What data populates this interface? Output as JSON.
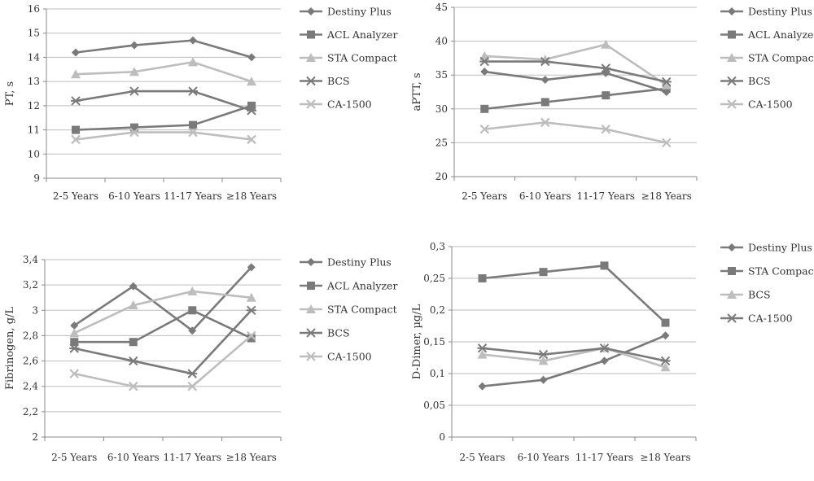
{
  "colors": {
    "dark": "#7a7a7a",
    "medium": "#8e8e8e",
    "light": "#bdbdbd",
    "grid": "#bdbdbd",
    "axis": "#8a8a8a"
  },
  "chart_data": [
    {
      "type": "line",
      "ylabel": "PT, s",
      "categories": [
        "2-5 Years",
        "6-10 Years",
        "11-17 Years",
        "≥18 Years"
      ],
      "yticks": [
        "9",
        "10",
        "11",
        "12",
        "13",
        "14",
        "15",
        "16"
      ],
      "ylim": [
        9,
        16
      ],
      "grid": true,
      "legend": "right",
      "series": [
        {
          "name": "Destiny Plus",
          "marker": "diamond",
          "tone": "dark",
          "values": [
            14.2,
            14.5,
            14.7,
            14.0
          ]
        },
        {
          "name": "ACL Analyzer",
          "marker": "square",
          "tone": "dark",
          "values": [
            11.0,
            11.1,
            11.2,
            12.0
          ]
        },
        {
          "name": "STA Compact",
          "marker": "triangle",
          "tone": "light",
          "values": [
            13.3,
            13.4,
            13.8,
            13.0
          ]
        },
        {
          "name": "BCS",
          "marker": "star",
          "tone": "dark",
          "values": [
            12.2,
            12.6,
            12.6,
            11.8
          ]
        },
        {
          "name": "CA-1500",
          "marker": "x",
          "tone": "light",
          "values": [
            10.6,
            10.9,
            10.9,
            10.6
          ]
        }
      ]
    },
    {
      "type": "line",
      "ylabel": "aPTT, s",
      "categories": [
        "2-5 Years",
        "6-10 Years",
        "11-17 Years",
        "≥18 Years"
      ],
      "yticks": [
        "20",
        "25",
        "30",
        "35",
        "40",
        "45"
      ],
      "ylim": [
        20,
        45
      ],
      "grid": true,
      "legend": "right",
      "series": [
        {
          "name": "Destiny Plus",
          "marker": "diamond",
          "tone": "dark",
          "values": [
            35.5,
            34.3,
            35.3,
            32.5
          ]
        },
        {
          "name": "ACL Analyzer",
          "marker": "square",
          "tone": "dark",
          "values": [
            30.0,
            31.0,
            32.0,
            33.0
          ]
        },
        {
          "name": "STA Compact",
          "marker": "triangle",
          "tone": "light",
          "values": [
            37.8,
            37.3,
            39.5,
            33.5
          ]
        },
        {
          "name": "BCS",
          "marker": "star",
          "tone": "dark",
          "values": [
            37.0,
            37.0,
            36.0,
            34.0
          ]
        },
        {
          "name": "CA-1500",
          "marker": "x",
          "tone": "light",
          "values": [
            27.0,
            28.0,
            27.0,
            25.0
          ]
        }
      ]
    },
    {
      "type": "line",
      "ylabel": "Fibrinogen, g/L",
      "categories": [
        "2-5 Years",
        "6-10 Years",
        "11-17 Years",
        "≥18 Years"
      ],
      "yticks": [
        "2",
        "2,2",
        "2,4",
        "2,6",
        "2,8",
        "3",
        "3,2",
        "3,4"
      ],
      "ylim": [
        2,
        3.4
      ],
      "grid": true,
      "legend": "right",
      "series": [
        {
          "name": "Destiny Plus",
          "marker": "diamond",
          "tone": "dark",
          "values": [
            2.88,
            3.19,
            2.84,
            3.34
          ]
        },
        {
          "name": "ACL Analyzer",
          "marker": "square",
          "tone": "dark",
          "values": [
            2.75,
            2.75,
            3.0,
            2.78
          ]
        },
        {
          "name": "STA Compact",
          "marker": "triangle",
          "tone": "light",
          "values": [
            2.82,
            3.04,
            3.15,
            3.1
          ]
        },
        {
          "name": "BCS",
          "marker": "star",
          "tone": "dark",
          "values": [
            2.7,
            2.6,
            2.5,
            3.0
          ]
        },
        {
          "name": "CA-1500",
          "marker": "x",
          "tone": "light",
          "values": [
            2.5,
            2.4,
            2.4,
            2.8
          ]
        }
      ]
    },
    {
      "type": "line",
      "ylabel": "D-Dimer, µg/L",
      "categories": [
        "2-5 Years",
        "6-10 Years",
        "11-17 Years",
        "≥18 Years"
      ],
      "yticks": [
        "0",
        "0,05",
        "0,1",
        "0,15",
        "0,2",
        "0,25",
        "0,3"
      ],
      "ylim": [
        0,
        0.3
      ],
      "grid": true,
      "legend": "right",
      "series": [
        {
          "name": "Destiny Plus",
          "marker": "diamond",
          "tone": "dark",
          "values": [
            0.08,
            0.09,
            0.12,
            0.16
          ]
        },
        {
          "name": "STA Compact",
          "marker": "square",
          "tone": "dark",
          "values": [
            0.25,
            0.26,
            0.27,
            0.18
          ]
        },
        {
          "name": "BCS",
          "marker": "triangle",
          "tone": "light",
          "values": [
            0.13,
            0.12,
            0.14,
            0.11
          ]
        },
        {
          "name": "CA-1500",
          "marker": "star",
          "tone": "dark",
          "values": [
            0.14,
            0.13,
            0.14,
            0.12
          ]
        }
      ]
    }
  ]
}
